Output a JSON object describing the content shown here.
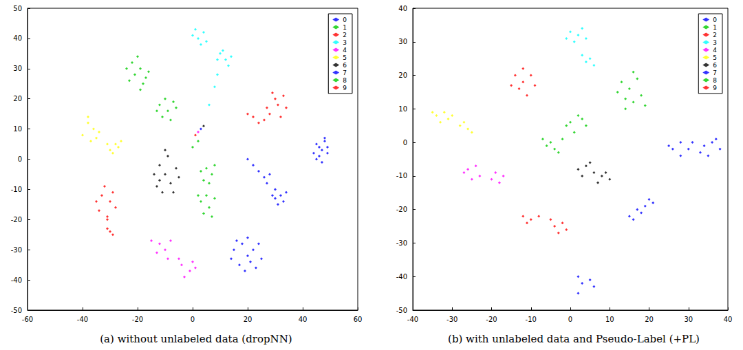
{
  "chart_data": [
    {
      "type": "scatter",
      "title": "(a) without unlabeled data (dropNN)",
      "xlim": [
        -60,
        60
      ],
      "xticks": [
        -60,
        -40,
        -20,
        0,
        20,
        40,
        60
      ],
      "ylim": [
        -50,
        50
      ],
      "yticks": [
        -50,
        -40,
        -30,
        -20,
        -10,
        0,
        10,
        20,
        30,
        40,
        50
      ],
      "grid": false,
      "legend": "upper right",
      "marker": "diamond",
      "series": [
        {
          "name": "0",
          "color": "#0000ff",
          "values": [
            [
              47,
              3
            ],
            [
              45,
              5
            ],
            [
              48,
              6
            ],
            [
              46,
              1
            ],
            [
              49,
              4
            ],
            [
              44,
              2
            ],
            [
              47,
              -1
            ],
            [
              48,
              7
            ],
            [
              46,
              4
            ],
            [
              45,
              0
            ],
            [
              49,
              2
            ],
            [
              24,
              -4
            ],
            [
              26,
              -6
            ],
            [
              28,
              -5
            ],
            [
              27,
              -8
            ],
            [
              30,
              -10
            ],
            [
              32,
              -12
            ],
            [
              29,
              -12
            ],
            [
              33,
              -14
            ],
            [
              31,
              -15
            ],
            [
              34,
              -11
            ],
            [
              30,
              -13
            ],
            [
              22,
              -2
            ],
            [
              20,
              0
            ],
            [
              3,
              10
            ]
          ]
        },
        {
          "name": "1",
          "color": "#00cc00",
          "values": [
            [
              -22,
              32
            ],
            [
              -19,
              30
            ],
            [
              -21,
              28
            ],
            [
              -17,
              27
            ],
            [
              -24,
              30
            ],
            [
              -20,
              34
            ],
            [
              -18,
              25
            ],
            [
              -16,
              29
            ],
            [
              -23,
              26
            ],
            [
              -19,
              23
            ],
            [
              -12,
              18
            ],
            [
              -9,
              16
            ],
            [
              -7,
              19
            ],
            [
              -11,
              14
            ],
            [
              -8,
              13
            ],
            [
              -13,
              16
            ],
            [
              -6,
              17
            ],
            [
              -10,
              20
            ]
          ]
        },
        {
          "name": "2",
          "color": "#ff0000",
          "values": [
            [
              -33,
              -12
            ],
            [
              -30,
              -14
            ],
            [
              -34,
              -17
            ],
            [
              -31,
              -19
            ],
            [
              -29,
              -11
            ],
            [
              -35,
              -14
            ],
            [
              -32,
              -9
            ],
            [
              -28,
              -16
            ],
            [
              -31,
              -20
            ],
            [
              -30,
              -24
            ],
            [
              -29,
              -25
            ],
            [
              -31,
              -23
            ],
            [
              1,
              8
            ]
          ]
        },
        {
          "name": "3",
          "color": "#00ffff",
          "values": [
            [
              2,
              40
            ],
            [
              4,
              42
            ],
            [
              0,
              41
            ],
            [
              5,
              39
            ],
            [
              3,
              38
            ],
            [
              1,
              43
            ],
            [
              10,
              35
            ],
            [
              12,
              33
            ],
            [
              13,
              31
            ],
            [
              11,
              36
            ],
            [
              14,
              34
            ],
            [
              9,
              33
            ],
            [
              9,
              28
            ],
            [
              8,
              24
            ],
            [
              6,
              18
            ]
          ]
        },
        {
          "name": "4",
          "color": "#ff00ff",
          "values": [
            [
              -12,
              -28
            ],
            [
              -10,
              -30
            ],
            [
              -8,
              -27
            ],
            [
              -13,
              -31
            ],
            [
              -9,
              -33
            ],
            [
              -15,
              -27
            ],
            [
              -4,
              -35
            ],
            [
              -1,
              -37
            ],
            [
              -3,
              -39
            ],
            [
              0,
              -34
            ],
            [
              -5,
              -33
            ],
            [
              1,
              -36
            ],
            [
              2,
              9
            ]
          ]
        },
        {
          "name": "5",
          "color": "#ffff00",
          "values": [
            [
              -38,
              12
            ],
            [
              -36,
              10
            ],
            [
              -40,
              8
            ],
            [
              -37,
              6
            ],
            [
              -34,
              9
            ],
            [
              -38,
              14
            ],
            [
              -35,
              7
            ],
            [
              -30,
              3
            ],
            [
              -28,
              5
            ],
            [
              -31,
              5
            ],
            [
              -29,
              2
            ],
            [
              -27,
              4
            ],
            [
              -26,
              6
            ]
          ]
        },
        {
          "name": "6",
          "color": "#000000",
          "values": [
            [
              -12,
              -2
            ],
            [
              -10,
              -5
            ],
            [
              -8,
              -8
            ],
            [
              -13,
              -9
            ],
            [
              -9,
              1
            ],
            [
              -6,
              -3
            ],
            [
              -14,
              -5
            ],
            [
              -11,
              -11
            ],
            [
              -7,
              -11
            ],
            [
              -10,
              3
            ],
            [
              -5,
              -6
            ],
            [
              -12,
              -7
            ],
            [
              4,
              11
            ]
          ]
        },
        {
          "name": "7",
          "color": "#0000ff",
          "values": [
            [
              15,
              -30
            ],
            [
              18,
              -28
            ],
            [
              20,
              -32
            ],
            [
              22,
              -30
            ],
            [
              17,
              -35
            ],
            [
              23,
              -36
            ],
            [
              19,
              -37
            ],
            [
              14,
              -33
            ],
            [
              24,
              -28
            ],
            [
              21,
              -34
            ],
            [
              16,
              -27
            ],
            [
              25,
              -33
            ],
            [
              20,
              -26
            ]
          ]
        },
        {
          "name": "8",
          "color": "#00cc00",
          "values": [
            [
              5,
              -3
            ],
            [
              7,
              -5
            ],
            [
              4,
              -7
            ],
            [
              8,
              -2
            ],
            [
              6,
              -8
            ],
            [
              3,
              -4
            ],
            [
              3,
              -14
            ],
            [
              6,
              -16
            ],
            [
              4,
              -18
            ],
            [
              8,
              -13
            ],
            [
              2,
              -12
            ],
            [
              7,
              -19
            ],
            [
              5,
              -12
            ],
            [
              2,
              6
            ],
            [
              0,
              4
            ]
          ]
        },
        {
          "name": "9",
          "color": "#ff0000",
          "values": [
            [
              28,
              15
            ],
            [
              31,
              18
            ],
            [
              33,
              21
            ],
            [
              30,
              20
            ],
            [
              27,
              17
            ],
            [
              32,
              14
            ],
            [
              29,
              22
            ],
            [
              34,
              17
            ],
            [
              26,
              13
            ],
            [
              24,
              12
            ],
            [
              22,
              14
            ],
            [
              20,
              15
            ]
          ]
        }
      ]
    },
    {
      "type": "scatter",
      "title": "(b) with unlabeled data and Pseudo-Label (+PL)",
      "xlim": [
        -40,
        40
      ],
      "xticks": [
        -40,
        -30,
        -20,
        -10,
        0,
        10,
        20,
        30,
        40
      ],
      "ylim": [
        -50,
        40
      ],
      "yticks": [
        -50,
        -40,
        -30,
        -20,
        -10,
        0,
        10,
        20,
        30,
        40
      ],
      "grid": false,
      "legend": "upper right",
      "marker": "diamond",
      "series": [
        {
          "name": "0",
          "color": "#0000ff",
          "values": [
            [
              26,
              -2
            ],
            [
              28,
              0
            ],
            [
              30,
              -2
            ],
            [
              28,
              -4
            ],
            [
              25,
              -1
            ],
            [
              31,
              0
            ],
            [
              34,
              -1
            ],
            [
              36,
              0
            ],
            [
              38,
              -2
            ],
            [
              35,
              -4
            ],
            [
              33,
              -3
            ],
            [
              37,
              1
            ]
          ]
        },
        {
          "name": "1",
          "color": "#00cc00",
          "values": [
            [
              0,
              6
            ],
            [
              2,
              8
            ],
            [
              4,
              5
            ],
            [
              1,
              3
            ],
            [
              3,
              7
            ],
            [
              -1,
              5
            ],
            [
              -6,
              -1
            ],
            [
              -4,
              -2
            ],
            [
              -7,
              1
            ],
            [
              -5,
              0
            ],
            [
              -3,
              -3
            ],
            [
              -2,
              1
            ]
          ]
        },
        {
          "name": "2",
          "color": "#ff0000",
          "values": [
            [
              -14,
              20
            ],
            [
              -12,
              18
            ],
            [
              -10,
              20
            ],
            [
              -13,
              16
            ],
            [
              -11,
              14
            ],
            [
              -9,
              17
            ],
            [
              -15,
              17
            ],
            [
              -12,
              22
            ]
          ]
        },
        {
          "name": "3",
          "color": "#00ffff",
          "values": [
            [
              0,
              33
            ],
            [
              2,
              32
            ],
            [
              4,
              31
            ],
            [
              1,
              30
            ],
            [
              3,
              34
            ],
            [
              -1,
              31
            ],
            [
              3,
              26
            ],
            [
              5,
              25
            ],
            [
              6,
              23
            ],
            [
              4,
              24
            ]
          ]
        },
        {
          "name": "4",
          "color": "#ff00ff",
          "values": [
            [
              -26,
              -8
            ],
            [
              -24,
              -7
            ],
            [
              -23,
              -10
            ],
            [
              -25,
              -11
            ],
            [
              -27,
              -9
            ],
            [
              -19,
              -9
            ],
            [
              -17,
              -10
            ],
            [
              -20,
              -11
            ],
            [
              -18,
              -12
            ]
          ]
        },
        {
          "name": "5",
          "color": "#ffff00",
          "values": [
            [
              -34,
              8
            ],
            [
              -32,
              9
            ],
            [
              -30,
              8
            ],
            [
              -33,
              6
            ],
            [
              -31,
              7
            ],
            [
              -35,
              9
            ],
            [
              -28,
              5
            ],
            [
              -26,
              4
            ],
            [
              -27,
              6
            ],
            [
              -25,
              3
            ]
          ]
        },
        {
          "name": "6",
          "color": "#000000",
          "values": [
            [
              2,
              -8
            ],
            [
              4,
              -7
            ],
            [
              6,
              -9
            ],
            [
              3,
              -10
            ],
            [
              5,
              -6
            ],
            [
              8,
              -10
            ],
            [
              10,
              -11
            ],
            [
              7,
              -12
            ],
            [
              9,
              -9
            ]
          ]
        },
        {
          "name": "7",
          "color": "#0000ff",
          "values": [
            [
              15,
              -22
            ],
            [
              17,
              -20
            ],
            [
              19,
              -19
            ],
            [
              21,
              -18
            ],
            [
              16,
              -23
            ],
            [
              18,
              -21
            ],
            [
              20,
              -17
            ],
            [
              2,
              -45
            ],
            [
              3,
              -42
            ],
            [
              5,
              -41
            ],
            [
              6,
              -43
            ],
            [
              2,
              -40
            ]
          ]
        },
        {
          "name": "8",
          "color": "#00cc00",
          "values": [
            [
              14,
              10
            ],
            [
              16,
              12
            ],
            [
              18,
              14
            ],
            [
              15,
              16
            ],
            [
              13,
              18
            ],
            [
              17,
              19
            ],
            [
              16,
              21
            ],
            [
              19,
              11
            ],
            [
              14,
              13
            ],
            [
              12,
              15
            ]
          ]
        },
        {
          "name": "9",
          "color": "#ff0000",
          "values": [
            [
              -12,
              -22
            ],
            [
              -10,
              -23
            ],
            [
              -8,
              -22
            ],
            [
              -11,
              -24
            ],
            [
              -4,
              -25
            ],
            [
              -2,
              -24
            ],
            [
              -3,
              -27
            ],
            [
              -1,
              -26
            ],
            [
              -5,
              -23
            ]
          ]
        }
      ]
    }
  ]
}
